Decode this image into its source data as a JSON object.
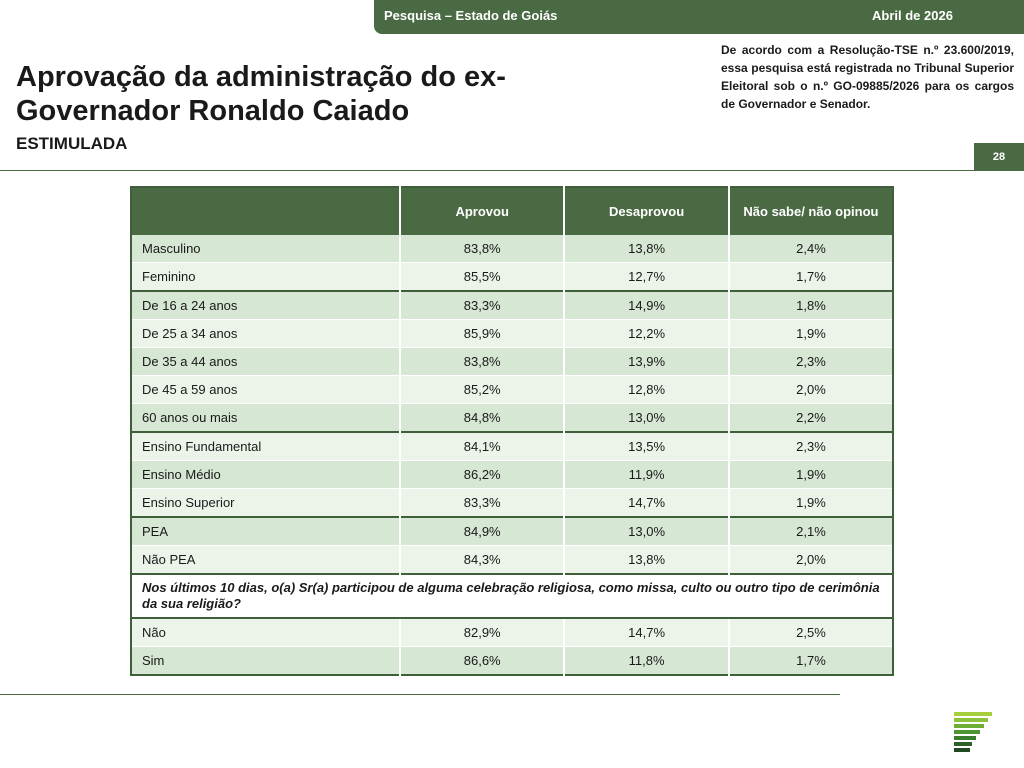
{
  "header": {
    "survey": "Pesquisa – Estado de Goiás",
    "date": "Abril de 2026"
  },
  "title": "Aprovação da administração do ex-Governador Ronaldo Caiado",
  "subtitle": "ESTIMULADA",
  "legal_note": "De acordo com a Resolução-TSE n.º 23.600/2019, essa pesquisa está registrada no Tribunal Superior Eleitoral sob o n.º GO-09885/2026 para os cargos de Governador e Senador.",
  "page_number": "28",
  "table": {
    "columns": [
      "",
      "Aprovou",
      "Desaprovou",
      "Não sabe/ não opinou"
    ],
    "rows": [
      {
        "label": "Masculino",
        "approved": "83,8%",
        "disapproved": "13,8%",
        "dk": "2,4%"
      },
      {
        "label": "Feminino",
        "approved": "85,5%",
        "disapproved": "12,7%",
        "dk": "1,7%"
      },
      {
        "label": "De 16 a 24 anos",
        "approved": "83,3%",
        "disapproved": "14,9%",
        "dk": "1,8%"
      },
      {
        "label": "De 25 a 34 anos",
        "approved": "85,9%",
        "disapproved": "12,2%",
        "dk": "1,9%"
      },
      {
        "label": "De 35 a 44 anos",
        "approved": "83,8%",
        "disapproved": "13,9%",
        "dk": "2,3%"
      },
      {
        "label": "De 45 a 59 anos",
        "approved": "85,2%",
        "disapproved": "12,8%",
        "dk": "2,0%"
      },
      {
        "label": "60 anos ou mais",
        "approved": "84,8%",
        "disapproved": "13,0%",
        "dk": "2,2%"
      },
      {
        "label": "Ensino Fundamental",
        "approved": "84,1%",
        "disapproved": "13,5%",
        "dk": "2,3%"
      },
      {
        "label": "Ensino Médio",
        "approved": "86,2%",
        "disapproved": "11,9%",
        "dk": "1,9%"
      },
      {
        "label": "Ensino Superior",
        "approved": "83,3%",
        "disapproved": "14,7%",
        "dk": "1,9%"
      },
      {
        "label": "PEA",
        "approved": "84,9%",
        "disapproved": "13,0%",
        "dk": "2,1%"
      },
      {
        "label": "Não PEA",
        "approved": "84,3%",
        "disapproved": "13,8%",
        "dk": "2,0%"
      },
      {
        "label": "Não",
        "approved": "82,9%",
        "disapproved": "14,7%",
        "dk": "2,5%"
      },
      {
        "label": "Sim",
        "approved": "86,6%",
        "disapproved": "11,8%",
        "dk": "1,7%"
      }
    ],
    "question": "Nos últimos 10 dias, o(a) Sr(a) participou de alguma celebração religiosa, como missa, culto ou outro tipo de cerimônia da sua religião?"
  },
  "colors": {
    "brand_green": "#4a6a44",
    "row_dark": "#d6e7d3",
    "row_light": "#ecf4ea"
  },
  "logo_icon": "stacked-bars-logo-icon"
}
